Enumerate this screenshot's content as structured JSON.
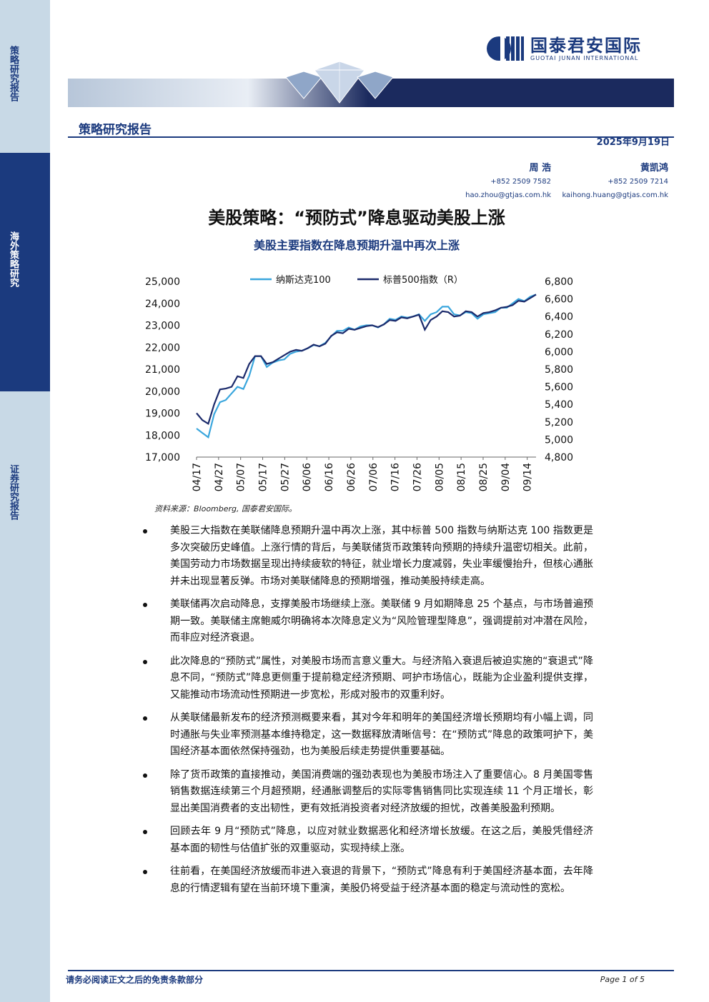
{
  "side": {
    "top_label": "策略研究报告",
    "middle_label": "海外策略研究",
    "bottom_label": "证券研究报告"
  },
  "header": {
    "logo_cn": "国泰君安国际",
    "logo_en": "GUOTAI JUNAN INTERNATIONAL",
    "report_type": "策略研究报告",
    "date": "2025年9月19日"
  },
  "analysts": [
    {
      "name": "周 浩",
      "phone": "+852 2509 7582",
      "email": "hao.zhou@gtjas.com.hk"
    },
    {
      "name": "黄凯鸿",
      "phone": "+852 2509 7214",
      "email": "kaihong.huang@gtjas.com.hk"
    }
  ],
  "title": "美股策略：“预防式”降息驱动美股上涨",
  "subtitle": "美股主要指数在降息预期升温中再次上涨",
  "chart_data": {
    "type": "line",
    "title": "",
    "x": [
      "04/17",
      "04/27",
      "05/07",
      "05/17",
      "05/27",
      "06/06",
      "06/16",
      "06/26",
      "07/06",
      "07/16",
      "07/26",
      "08/05",
      "08/15",
      "08/25",
      "09/04",
      "09/14"
    ],
    "y_left_ticks": [
      "17,000",
      "18,000",
      "19,000",
      "20,000",
      "21,000",
      "22,000",
      "23,000",
      "24,000",
      "25,000"
    ],
    "y_right_ticks": [
      "4,800",
      "5,000",
      "5,200",
      "5,400",
      "5,600",
      "5,800",
      "6,000",
      "6,200",
      "6,400",
      "6,600",
      "6,800"
    ],
    "y_left_range": [
      17000,
      25000
    ],
    "y_right_range": [
      4800,
      6800
    ],
    "legend_position": "top",
    "series": [
      {
        "name": "纳斯达克100",
        "axis": "left",
        "color": "#3aa6dd",
        "points": [
          [
            0,
            18300
          ],
          [
            1,
            18100
          ],
          [
            2,
            17900
          ],
          [
            3,
            18950
          ],
          [
            4,
            19500
          ],
          [
            5,
            19600
          ],
          [
            6,
            19900
          ],
          [
            7,
            20200
          ],
          [
            8,
            20100
          ],
          [
            9,
            20700
          ],
          [
            10,
            21600
          ],
          [
            11,
            21600
          ],
          [
            12,
            21100
          ],
          [
            13,
            21300
          ],
          [
            14,
            21400
          ],
          [
            15,
            21450
          ],
          [
            16,
            21700
          ],
          [
            17,
            21800
          ],
          [
            18,
            21850
          ],
          [
            19,
            21950
          ],
          [
            20,
            22100
          ],
          [
            21,
            22050
          ],
          [
            22,
            22200
          ],
          [
            23,
            22500
          ],
          [
            24,
            22750
          ],
          [
            25,
            22750
          ],
          [
            26,
            22900
          ],
          [
            27,
            22800
          ],
          [
            28,
            22950
          ],
          [
            29,
            23000
          ],
          [
            30,
            23000
          ],
          [
            31,
            22900
          ],
          [
            32,
            23050
          ],
          [
            33,
            23300
          ],
          [
            34,
            23250
          ],
          [
            35,
            23400
          ],
          [
            36,
            23350
          ],
          [
            37,
            23400
          ],
          [
            38,
            23500
          ],
          [
            39,
            23200
          ],
          [
            40,
            23500
          ],
          [
            41,
            23600
          ],
          [
            42,
            23850
          ],
          [
            43,
            23850
          ],
          [
            44,
            23500
          ],
          [
            45,
            23450
          ],
          [
            46,
            23600
          ],
          [
            47,
            23550
          ],
          [
            48,
            23300
          ],
          [
            49,
            23500
          ],
          [
            50,
            23550
          ],
          [
            51,
            23600
          ],
          [
            52,
            23800
          ],
          [
            53,
            23800
          ],
          [
            54,
            24000
          ],
          [
            55,
            24200
          ],
          [
            56,
            24100
          ],
          [
            57,
            24300
          ],
          [
            58,
            24400
          ]
        ]
      },
      {
        "name": "标普500指数（R）",
        "axis": "right",
        "color": "#1b2a6b",
        "points": [
          [
            0,
            5300
          ],
          [
            1,
            5220
          ],
          [
            2,
            5180
          ],
          [
            3,
            5400
          ],
          [
            4,
            5570
          ],
          [
            5,
            5580
          ],
          [
            6,
            5600
          ],
          [
            7,
            5720
          ],
          [
            8,
            5700
          ],
          [
            9,
            5860
          ],
          [
            10,
            5950
          ],
          [
            11,
            5950
          ],
          [
            12,
            5860
          ],
          [
            13,
            5880
          ],
          [
            14,
            5920
          ],
          [
            15,
            5960
          ],
          [
            16,
            6000
          ],
          [
            17,
            6020
          ],
          [
            18,
            6010
          ],
          [
            19,
            6040
          ],
          [
            20,
            6080
          ],
          [
            21,
            6060
          ],
          [
            22,
            6090
          ],
          [
            23,
            6180
          ],
          [
            24,
            6220
          ],
          [
            25,
            6210
          ],
          [
            26,
            6260
          ],
          [
            27,
            6250
          ],
          [
            28,
            6270
          ],
          [
            29,
            6290
          ],
          [
            30,
            6300
          ],
          [
            31,
            6280
          ],
          [
            32,
            6310
          ],
          [
            33,
            6360
          ],
          [
            34,
            6350
          ],
          [
            35,
            6390
          ],
          [
            36,
            6380
          ],
          [
            37,
            6400
          ],
          [
            38,
            6420
          ],
          [
            39,
            6250
          ],
          [
            40,
            6360
          ],
          [
            41,
            6400
          ],
          [
            42,
            6460
          ],
          [
            43,
            6450
          ],
          [
            44,
            6400
          ],
          [
            45,
            6410
          ],
          [
            46,
            6460
          ],
          [
            47,
            6450
          ],
          [
            48,
            6400
          ],
          [
            49,
            6440
          ],
          [
            50,
            6450
          ],
          [
            51,
            6470
          ],
          [
            52,
            6500
          ],
          [
            53,
            6510
          ],
          [
            54,
            6530
          ],
          [
            55,
            6580
          ],
          [
            56,
            6570
          ],
          [
            57,
            6610
          ],
          [
            58,
            6650
          ]
        ]
      }
    ]
  },
  "source": "资料来源：Bloomberg, 国泰君安国际。",
  "bullets": [
    "美股三大指数在美联储降息预期升温中再次上涨，其中标普 500 指数与纳斯达克 100 指数更是多次突破历史峰值。上涨行情的背后，与美联储货币政策转向预期的持续升温密切相关。此前，美国劳动力市场数据呈现出持续疲软的特征，就业增长力度减弱，失业率缓慢抬升，但核心通胀并未出现显著反弹。市场对美联储降息的预期增强，推动美股持续走高。",
    "美联储再次启动降息，支撑美股市场继续上涨。美联储 9 月如期降息 25 个基点，与市场普遍预期一致。美联储主席鲍威尔明确将本次降息定义为“风险管理型降息”，强调提前对冲潜在风险，而非应对经济衰退。",
    "此次降息的“预防式”属性，对美股市场而言意义重大。与经济陷入衰退后被迫实施的“衰退式”降息不同，“预防式”降息更侧重于提前稳定经济预期、呵护市场信心，既能为企业盈利提供支撑，又能推动市场流动性预期进一步宽松，形成对股市的双重利好。",
    "从美联储最新发布的经济预测概要来看，其对今年和明年的美国经济增长预期均有小幅上调，同时通胀与失业率预测基本维持稳定，这一数据释放清晰信号：在“预防式”降息的政策呵护下，美国经济基本面依然保持强劲，也为美股后续走势提供重要基础。",
    "除了货币政策的直接推动，美国消费端的强劲表现也为美股市场注入了重要信心。8 月美国零售销售数据连续第三个月超预期，经通胀调整后的实际零售销售同比实现连续 11 个月正增长，彰显出美国消费者的支出韧性，更有效抵消投资者对经济放缓的担忧，改善美股盈利预期。",
    "回顾去年 9 月“预防式”降息，以应对就业数据恶化和经济增长放缓。在这之后，美股凭借经济基本面的韧性与估值扩张的双重驱动，实现持续上涨。",
    "往前看，在美国经济放缓而非进入衰退的背景下，“预防式”降息有利于美国经济基本面，去年降息的行情逻辑有望在当前环境下重演，美股仍将受益于经济基本面的稳定与流动性的宽松。"
  ],
  "footer": {
    "disclaimer": "请务必阅读正文之后的免责条款部分",
    "page": "Page 1 of 5"
  }
}
